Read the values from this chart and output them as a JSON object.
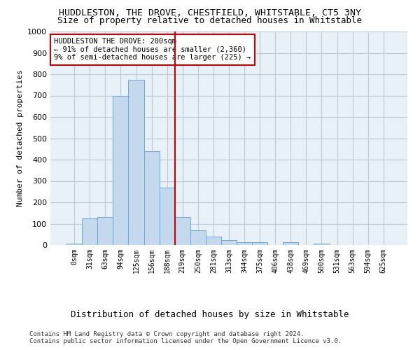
{
  "title": "HUDDLESTON, THE DROVE, CHESTFIELD, WHITSTABLE, CT5 3NY",
  "subtitle": "Size of property relative to detached houses in Whitstable",
  "xlabel_main": "Distribution of detached houses by size in Whitstable",
  "ylabel": "Number of detached properties",
  "bar_color": "#c5d9ee",
  "bar_edge_color": "#6aaad4",
  "plot_bg_color": "#e8f0f8",
  "background_color": "#ffffff",
  "grid_color": "#c0c8d8",
  "vline_color": "#cc0000",
  "vline_x_index": 7,
  "categories": [
    "0sqm",
    "31sqm",
    "63sqm",
    "94sqm",
    "125sqm",
    "156sqm",
    "188sqm",
    "219sqm",
    "250sqm",
    "281sqm",
    "313sqm",
    "344sqm",
    "375sqm",
    "406sqm",
    "438sqm",
    "469sqm",
    "500sqm",
    "531sqm",
    "563sqm",
    "594sqm",
    "625sqm"
  ],
  "values": [
    8,
    125,
    130,
    700,
    775,
    440,
    270,
    130,
    70,
    40,
    22,
    12,
    12,
    0,
    12,
    0,
    8,
    0,
    0,
    0,
    0
  ],
  "ylim": [
    0,
    1000
  ],
  "yticks": [
    0,
    100,
    200,
    300,
    400,
    500,
    600,
    700,
    800,
    900,
    1000
  ],
  "annotation_text": "HUDDLESTON THE DROVE: 200sqm\n← 91% of detached houses are smaller (2,360)\n9% of semi-detached houses are larger (225) →",
  "annotation_box_color": "#ffffff",
  "annotation_box_edge": "#cc0000",
  "footer1": "Contains HM Land Registry data © Crown copyright and database right 2024.",
  "footer2": "Contains public sector information licensed under the Open Government Licence v3.0.",
  "title_fontsize": 9.5,
  "subtitle_fontsize": 9,
  "tick_fontsize": 7,
  "ylabel_fontsize": 8,
  "annotation_fontsize": 7.5,
  "xlabel_fontsize": 9,
  "footer_fontsize": 6.5
}
